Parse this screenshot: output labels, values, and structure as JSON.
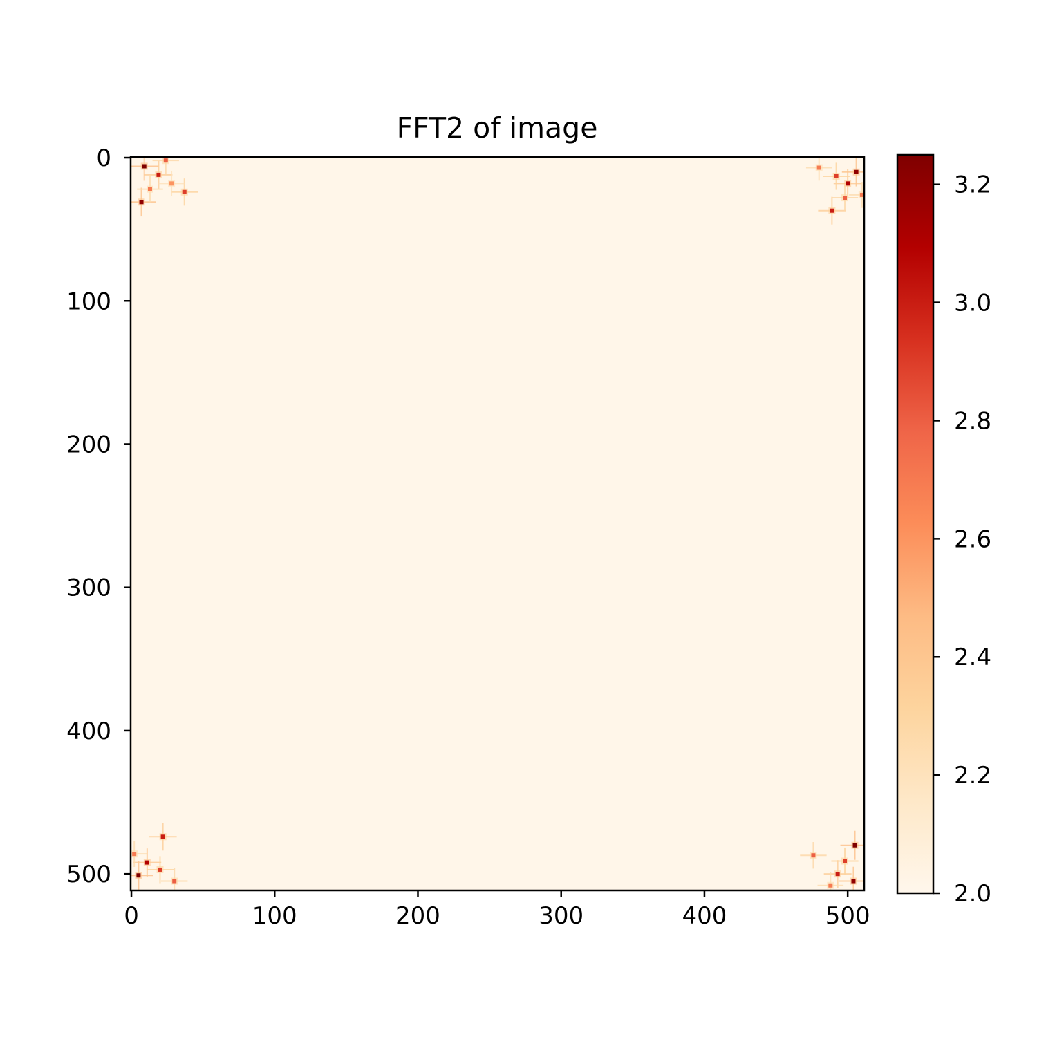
{
  "chart_data": {
    "type": "heatmap",
    "title": "FFT2 of image",
    "xlabel": "",
    "ylabel": "",
    "colormap": "OrRd",
    "colormap_stops": [
      "#fff7ec",
      "#fee8c8",
      "#fdd49e",
      "#fdbb84",
      "#fc8d59",
      "#ef6548",
      "#d7301f",
      "#b30000",
      "#7f0000"
    ],
    "xlim": [
      0,
      511
    ],
    "ylim": [
      511,
      0
    ],
    "x_ticks": [
      0,
      100,
      200,
      300,
      400,
      500
    ],
    "y_ticks": [
      0,
      100,
      200,
      300,
      400,
      500
    ],
    "x_tick_labels": [
      "0",
      "100",
      "200",
      "300",
      "400",
      "500"
    ],
    "y_tick_labels": [
      "0",
      "100",
      "200",
      "300",
      "400",
      "500"
    ],
    "colorbar": {
      "range": [
        2.0,
        3.25
      ],
      "ticks": [
        2.0,
        2.2,
        2.4,
        2.6,
        2.8,
        3.0,
        3.2
      ],
      "tick_labels": [
        "2.0",
        "2.2",
        "2.4",
        "2.6",
        "2.8",
        "3.0",
        "3.2"
      ]
    },
    "background_value": 2.0,
    "peaks": [
      {
        "x": 9,
        "y": 6,
        "value": 3.25
      },
      {
        "x": 19,
        "y": 12,
        "value": 3.0
      },
      {
        "x": 7,
        "y": 31,
        "value": 3.2
      },
      {
        "x": 37,
        "y": 24,
        "value": 2.9
      },
      {
        "x": 24,
        "y": 2,
        "value": 2.8
      },
      {
        "x": 13,
        "y": 22,
        "value": 2.7
      },
      {
        "x": 28,
        "y": 18,
        "value": 2.6
      },
      {
        "x": 506,
        "y": 10,
        "value": 3.2
      },
      {
        "x": 500,
        "y": 18,
        "value": 3.1
      },
      {
        "x": 489,
        "y": 37,
        "value": 3.0
      },
      {
        "x": 492,
        "y": 13,
        "value": 2.9
      },
      {
        "x": 498,
        "y": 28,
        "value": 2.8
      },
      {
        "x": 480,
        "y": 7,
        "value": 2.7
      },
      {
        "x": 510,
        "y": 26,
        "value": 2.7
      },
      {
        "x": 5,
        "y": 501,
        "value": 3.25
      },
      {
        "x": 11,
        "y": 492,
        "value": 3.1
      },
      {
        "x": 22,
        "y": 474,
        "value": 3.0
      },
      {
        "x": 20,
        "y": 497,
        "value": 2.9
      },
      {
        "x": 30,
        "y": 505,
        "value": 2.8
      },
      {
        "x": 2,
        "y": 486,
        "value": 2.7
      },
      {
        "x": 505,
        "y": 480,
        "value": 3.25
      },
      {
        "x": 504,
        "y": 505,
        "value": 3.2
      },
      {
        "x": 493,
        "y": 500,
        "value": 3.0
      },
      {
        "x": 498,
        "y": 491,
        "value": 2.9
      },
      {
        "x": 476,
        "y": 487,
        "value": 2.8
      },
      {
        "x": 488,
        "y": 508,
        "value": 2.7
      }
    ]
  }
}
